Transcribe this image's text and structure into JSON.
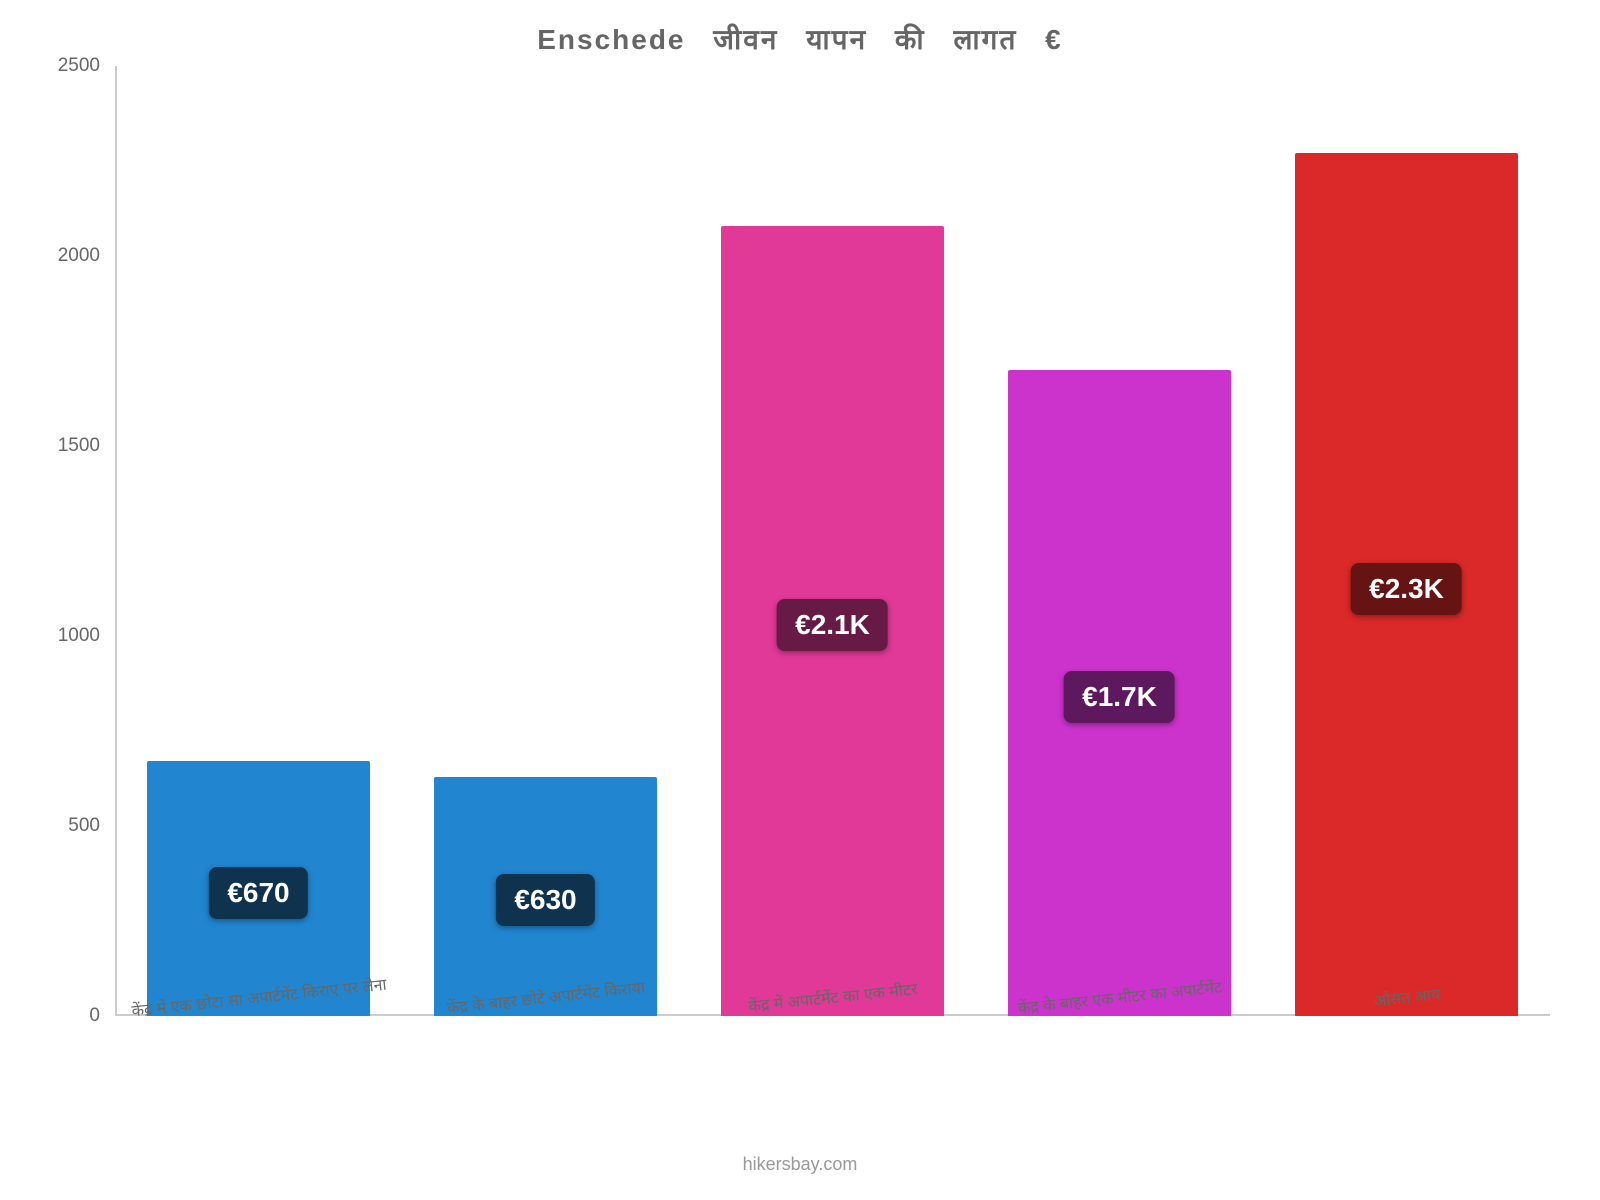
{
  "chart": {
    "type": "bar",
    "title": "Enschede जीवन यापन की लागत €",
    "title_fontsize": 28,
    "title_color": "#666666",
    "background_color": "#ffffff",
    "axis_color": "#cccccc",
    "y_axis": {
      "min": 0,
      "max": 2500,
      "tick_step": 500,
      "ticks": [
        "0",
        "500",
        "1000",
        "1500",
        "2000",
        "2500"
      ],
      "tick_fontsize": 19,
      "tick_color": "#666666"
    },
    "x_axis": {
      "label_fontsize": 16,
      "label_color": "#666666",
      "label_rotation_deg": -6
    },
    "bars": [
      {
        "category": "केंद्र में एक छोटा सा अपार्टमेंट किराए पर लेना",
        "value": 670,
        "display_label": "€670",
        "bar_color": "#2185d0",
        "label_bg": "#0f334e",
        "label_text_color": "#ffffff"
      },
      {
        "category": "केंद्र के बाहर छोटे अपार्टमेंट किराया",
        "value": 630,
        "display_label": "€630",
        "bar_color": "#2185d0",
        "label_bg": "#0f334e",
        "label_text_color": "#ffffff"
      },
      {
        "category": "केंद्र में अपार्टमेंट का एक मीटर",
        "value": 2080,
        "display_label": "€2.1K",
        "bar_color": "#e03997",
        "label_bg": "#661a44",
        "label_text_color": "#ffffff"
      },
      {
        "category": "केंद्र के बाहर एक मीटर का अपार्टमेंट",
        "value": 1700,
        "display_label": "€1.7K",
        "bar_color": "#cc33cc",
        "label_bg": "#5e185e",
        "label_text_color": "#ffffff"
      },
      {
        "category": "औसत आय",
        "value": 2270,
        "display_label": "€2.3K",
        "bar_color": "#db2828",
        "label_bg": "#661313",
        "label_text_color": "#ffffff"
      }
    ],
    "bar_label_fontsize": 28,
    "bar_width_pct": 78,
    "attribution": "hikersbay.com",
    "attribution_color": "#999999",
    "attribution_fontsize": 18
  }
}
